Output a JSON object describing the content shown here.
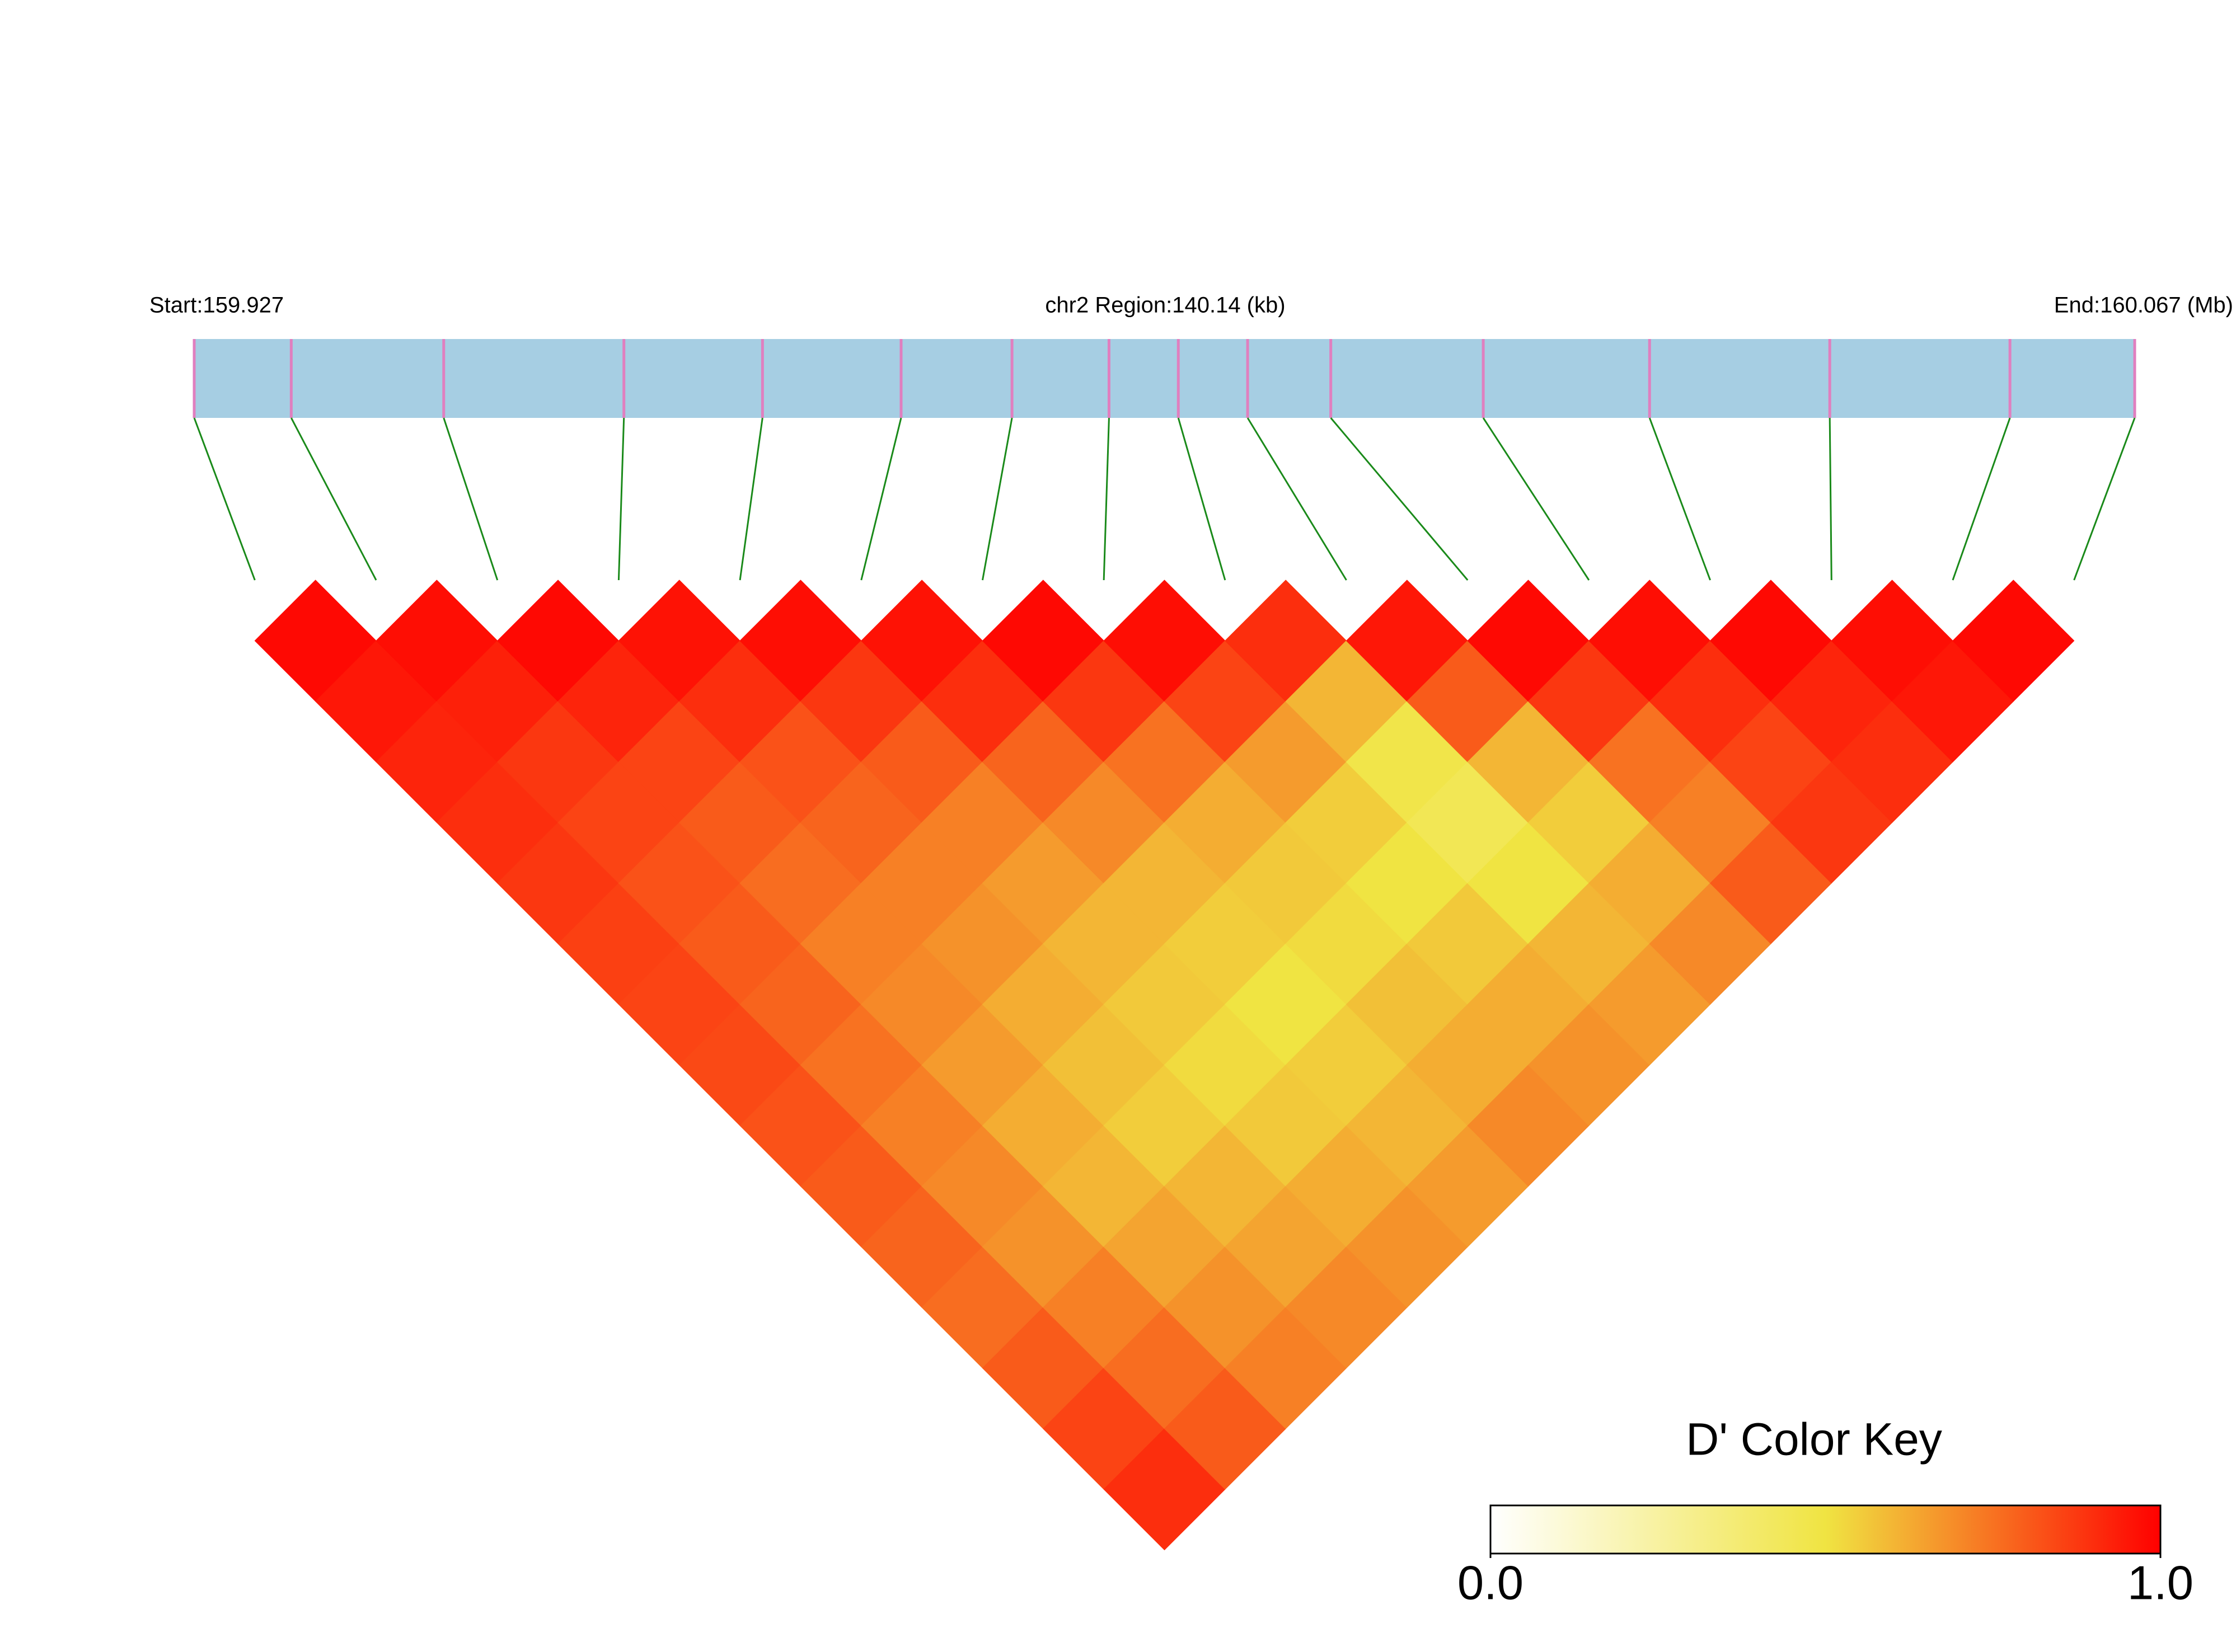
{
  "chart_data": {
    "type": "ld-heatmap",
    "start_label": "Start:159.927",
    "region_label": "chr2 Region:140.14 (kb)",
    "end_label": "End:160.067 (Mb)",
    "xlim": [
      159.927,
      160.067
    ],
    "snp_positions": [
      159.927,
      159.934,
      159.945,
      159.958,
      159.968,
      159.978,
      159.986,
      159.993,
      159.998,
      160.003,
      160.009,
      160.02,
      160.032,
      160.045,
      160.058,
      160.067
    ],
    "track_color": "#a6cee3",
    "snp_color": "#e07fbf",
    "connector_color": "#1a8a1a",
    "dprime": [
      [
        0.98,
        0.95,
        0.92,
        0.9,
        0.88,
        0.86,
        0.85,
        0.84,
        0.82,
        0.8,
        0.78,
        0.76,
        0.8,
        0.85,
        0.9
      ],
      [
        0.97,
        0.93,
        0.88,
        0.85,
        0.82,
        0.8,
        0.78,
        0.75,
        0.72,
        0.7,
        0.68,
        0.72,
        0.76,
        0.8
      ],
      [
        0.98,
        0.92,
        0.85,
        0.8,
        0.76,
        0.72,
        0.7,
        0.66,
        0.62,
        0.6,
        0.64,
        0.68,
        0.72
      ],
      [
        0.96,
        0.9,
        0.82,
        0.78,
        0.72,
        0.68,
        0.62,
        0.58,
        0.55,
        0.6,
        0.64,
        0.7
      ],
      [
        0.97,
        0.88,
        0.8,
        0.72,
        0.66,
        0.6,
        0.56,
        0.52,
        0.56,
        0.62,
        0.68
      ],
      [
        0.96,
        0.9,
        0.78,
        0.7,
        0.6,
        0.55,
        0.5,
        0.55,
        0.6,
        0.66
      ],
      [
        0.98,
        0.88,
        0.75,
        0.62,
        0.56,
        0.52,
        0.58,
        0.62,
        0.7
      ],
      [
        0.97,
        0.85,
        0.66,
        0.55,
        0.5,
        0.56,
        0.62,
        0.68
      ],
      [
        0.9,
        0.6,
        0.48,
        0.45,
        0.5,
        0.6,
        0.66
      ],
      [
        0.95,
        0.8,
        0.6,
        0.55,
        0.62,
        0.7
      ],
      [
        0.98,
        0.88,
        0.75,
        0.72,
        0.8
      ],
      [
        0.97,
        0.9,
        0.85,
        0.88
      ],
      [
        0.98,
        0.92,
        0.9
      ],
      [
        0.97,
        0.95
      ],
      [
        0.98
      ]
    ],
    "colors": [
      "#ffffff",
      "#f0e442",
      "#ff0000"
    ],
    "key_title": "D' Color Key",
    "key_lim": [
      0,
      1
    ],
    "key_ticks": [
      {
        "value": 0,
        "label": "0.0"
      },
      {
        "value": 1,
        "label": "1.0"
      }
    ]
  }
}
